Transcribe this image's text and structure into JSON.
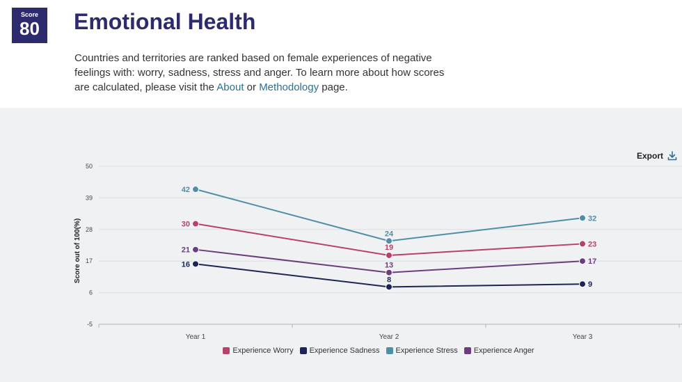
{
  "header": {
    "score_label": "Score",
    "score_value": "80",
    "title": "Emotional Health",
    "description_start": "Countries and territories are ranked based on female experiences of negative feelings with: worry, sadness, stress and anger. To learn more about how scores are calculated, please visit the ",
    "about_link": "About",
    "description_or": " or ",
    "methodology_link": "Methodology",
    "description_end": " page."
  },
  "toolbar": {
    "export_label": "Export",
    "export_icon": "download-icon"
  },
  "colors": {
    "worry": "#b8416a",
    "sadness": "#1d2556",
    "stress": "#4e8ea7",
    "anger": "#6b3c7e"
  },
  "chart_data": {
    "type": "line",
    "title": "",
    "xlabel": "",
    "ylabel": "Score out of 100(%)",
    "categories": [
      "Year 1",
      "Year 2",
      "Year 3"
    ],
    "yticks": [
      50,
      39,
      28,
      17,
      6,
      -5
    ],
    "ylim": [
      -5,
      50
    ],
    "grid": true,
    "legend_position": "bottom-center",
    "series": [
      {
        "key": "worry",
        "name": "Experience Worry",
        "values": [
          30,
          19,
          23
        ]
      },
      {
        "key": "sadness",
        "name": "Experience Sadness",
        "values": [
          16,
          8,
          9
        ]
      },
      {
        "key": "stress",
        "name": "Experience Stress",
        "values": [
          42,
          24,
          32
        ]
      },
      {
        "key": "anger",
        "name": "Experience Anger",
        "values": [
          21,
          13,
          17
        ]
      }
    ]
  }
}
